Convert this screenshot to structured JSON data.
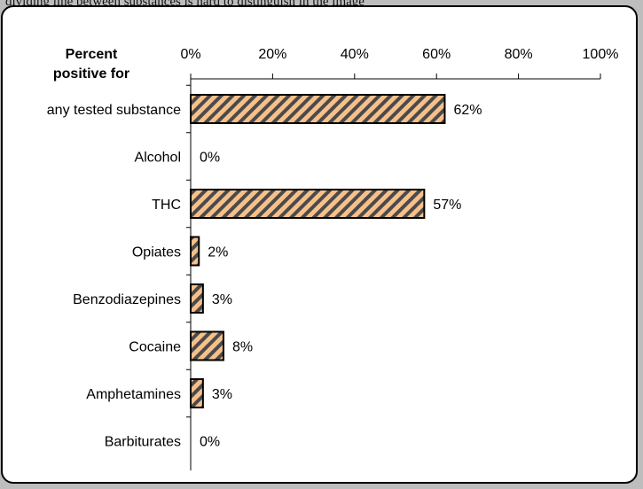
{
  "caption": "dividing line between substances is hard to distinguish in the image",
  "colors": {
    "bar_fill": "#f7c08a",
    "bar_hatch": "#4a4a4a",
    "bar_border": "#000000",
    "frame_background": "#bdbdbd",
    "panel_background": "#ffffff"
  },
  "chart_data": {
    "type": "bar",
    "orientation": "horizontal",
    "title": "Percent positive for",
    "categories": [
      "any tested substance",
      "Alcohol",
      "THC",
      "Opiates",
      "Benzodiazepines",
      "Cocaine",
      "Amphetamines",
      "Barbiturates"
    ],
    "values": [
      62,
      0,
      57,
      2,
      3,
      8,
      3,
      0
    ],
    "data_labels": [
      "62%",
      "0%",
      "57%",
      "2%",
      "3%",
      "8%",
      "3%",
      "0%"
    ],
    "xlim": [
      0,
      100
    ],
    "x_ticks": [
      0,
      20,
      40,
      60,
      80,
      100
    ],
    "x_tick_labels": [
      "0%",
      "20%",
      "40%",
      "60%",
      "80%",
      "100%"
    ],
    "axis_position": "top",
    "grid": false,
    "legend": "none",
    "bar_pattern": "diagonal-hatch"
  }
}
